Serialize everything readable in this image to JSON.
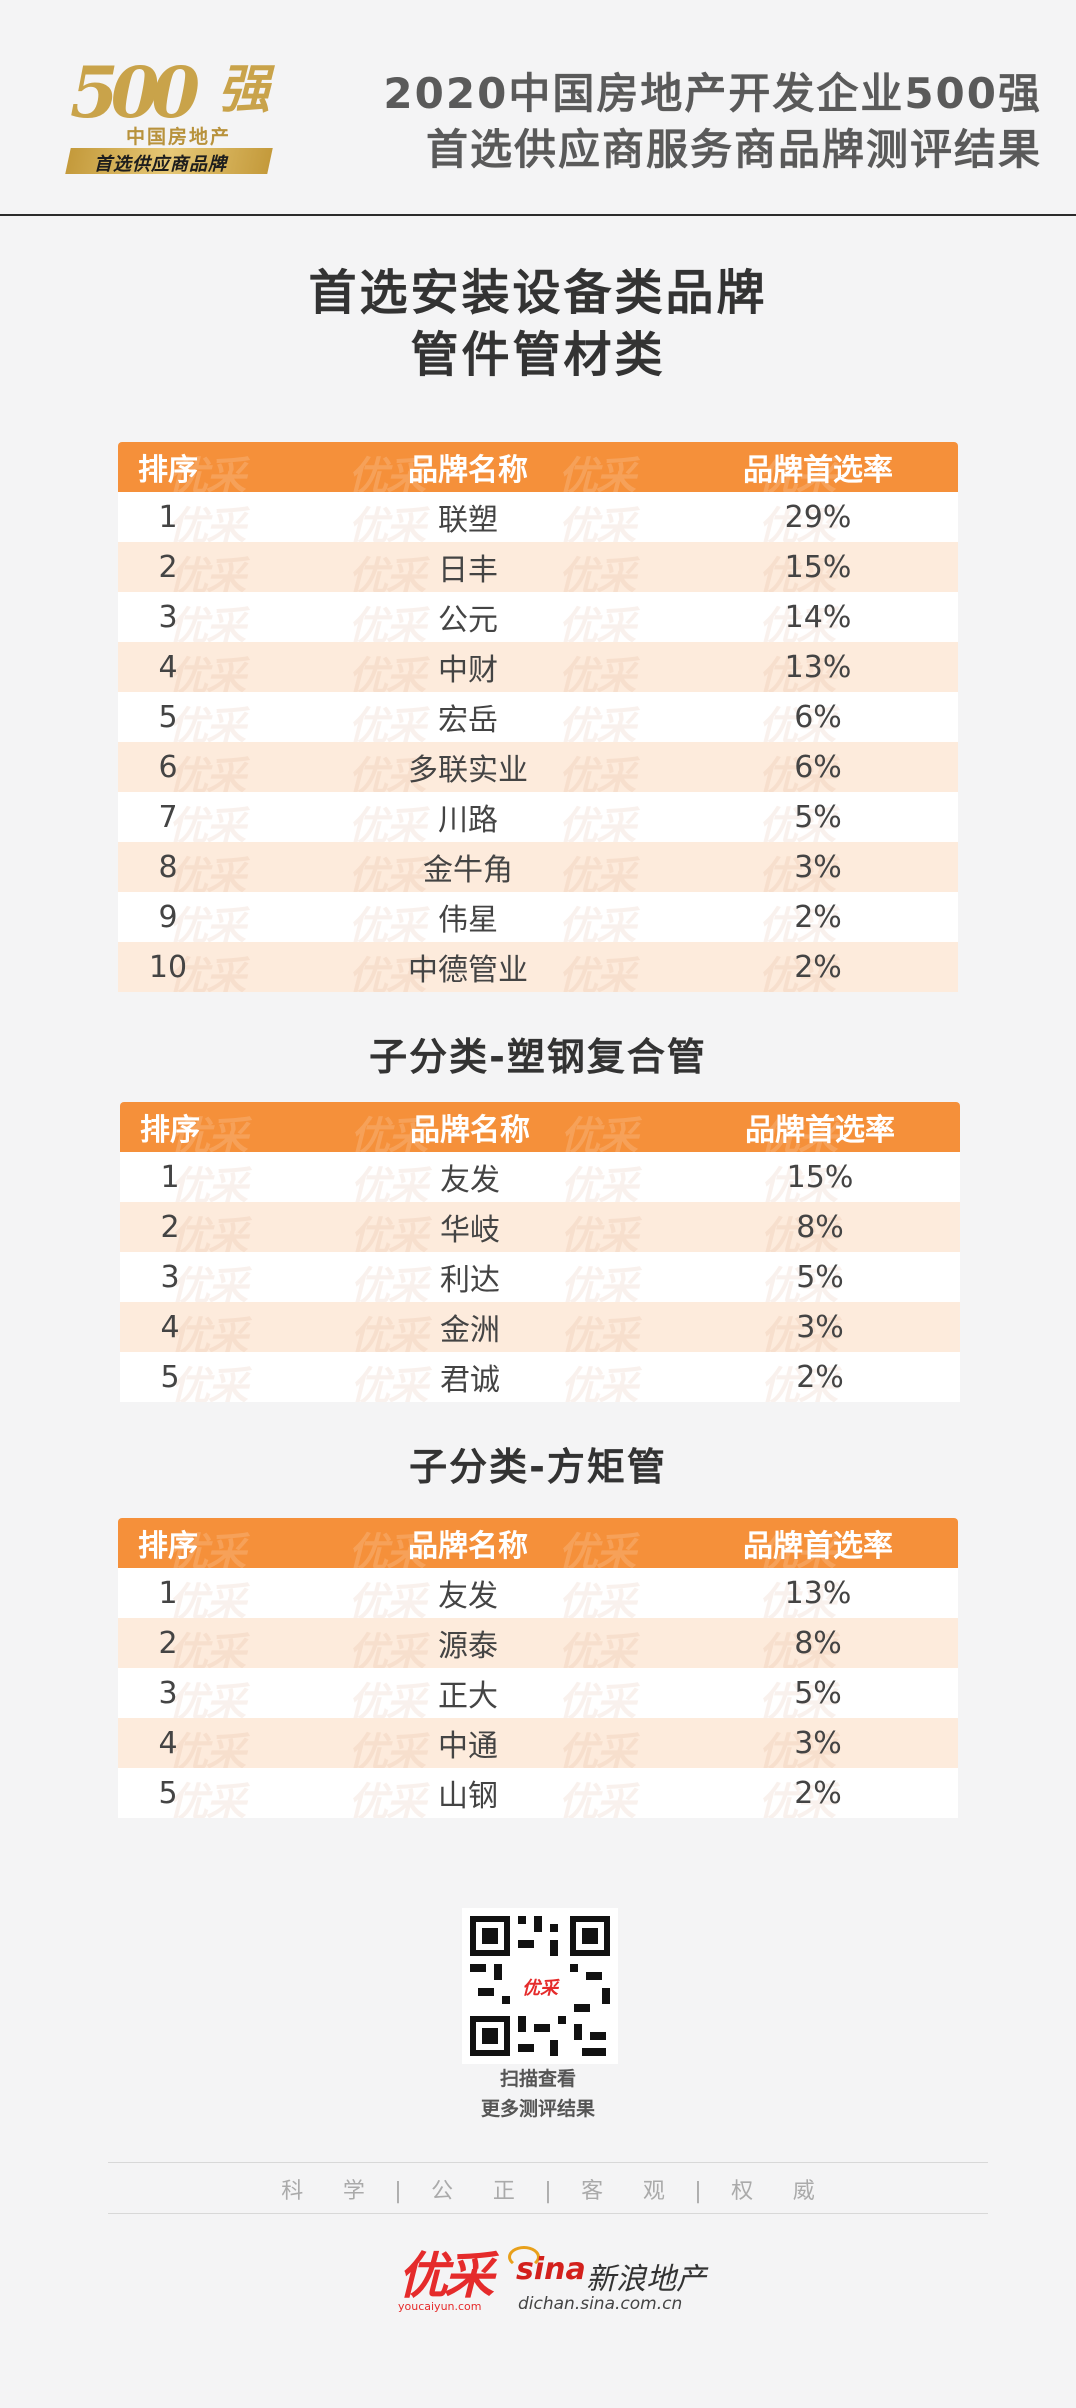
{
  "header": {
    "logo_number": "500",
    "logo_char": "强",
    "logo_sub": "中国房地产",
    "logo_band": "首选供应商品牌",
    "title_line1": "2020中国房地产开发企业500强",
    "title_line2": "首选供应商服务商品牌测评结果"
  },
  "main_title": {
    "line1": "首选安装设备类品牌",
    "line2": "管件管材类"
  },
  "columns": {
    "rank": "排序",
    "name": "品牌名称",
    "rate": "品牌首选率"
  },
  "tables": [
    {
      "rows": [
        {
          "rank": "1",
          "name": "联塑",
          "rate": "29%"
        },
        {
          "rank": "2",
          "name": "日丰",
          "rate": "15%"
        },
        {
          "rank": "3",
          "name": "公元",
          "rate": "14%"
        },
        {
          "rank": "4",
          "name": "中财",
          "rate": "13%"
        },
        {
          "rank": "5",
          "name": "宏岳",
          "rate": "6%"
        },
        {
          "rank": "6",
          "name": "多联实业",
          "rate": "6%"
        },
        {
          "rank": "7",
          "name": "川路",
          "rate": "5%"
        },
        {
          "rank": "8",
          "name": "金牛角",
          "rate": "3%"
        },
        {
          "rank": "9",
          "name": "伟星",
          "rate": "2%"
        },
        {
          "rank": "10",
          "name": "中德管业",
          "rate": "2%"
        }
      ]
    },
    {
      "title": "子分类-塑钢复合管",
      "rows": [
        {
          "rank": "1",
          "name": "友发",
          "rate": "15%"
        },
        {
          "rank": "2",
          "name": "华岐",
          "rate": "8%"
        },
        {
          "rank": "3",
          "name": "利达",
          "rate": "5%"
        },
        {
          "rank": "4",
          "name": "金洲",
          "rate": "3%"
        },
        {
          "rank": "5",
          "name": "君诚",
          "rate": "2%"
        }
      ]
    },
    {
      "title": "子分类-方矩管",
      "rows": [
        {
          "rank": "1",
          "name": "友发",
          "rate": "13%"
        },
        {
          "rank": "2",
          "name": "源泰",
          "rate": "8%"
        },
        {
          "rank": "3",
          "name": "正大",
          "rate": "5%"
        },
        {
          "rank": "4",
          "name": "中通",
          "rate": "3%"
        },
        {
          "rank": "5",
          "name": "山钢",
          "rate": "2%"
        }
      ]
    }
  ],
  "watermark": "优采",
  "qr": {
    "caption_line1": "扫描查看",
    "caption_line2": "更多测评结果",
    "center_label": "优采"
  },
  "footer": {
    "motto": "科   学  |  公   正  |  客   观  |  权   威",
    "brand_youcai": "优采",
    "brand_youcai_url": "youcaiyun.com",
    "brand_sina": "sina",
    "brand_sina_cn": "新浪地产",
    "brand_sina_url": "dichan.sina.com.cn"
  },
  "colors": {
    "accent_orange": "#f5903a",
    "row_tint": "#fdebdc",
    "logo_gold": "#c9a34a",
    "youcai_red": "#e52b2b"
  }
}
